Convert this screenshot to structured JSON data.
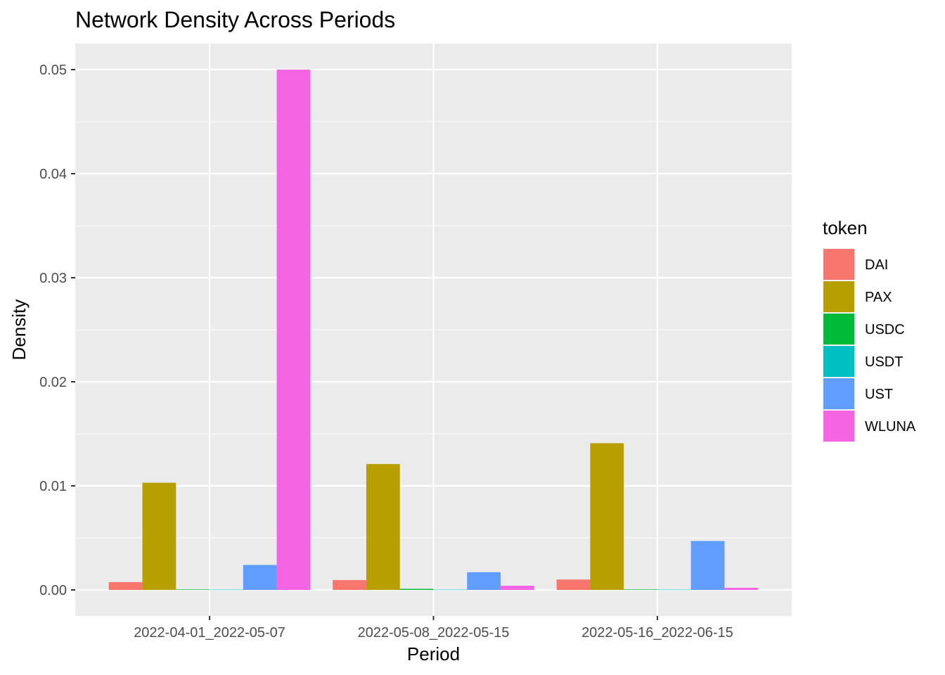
{
  "chart_data": {
    "type": "bar",
    "title": "Network Density Across Periods",
    "xlabel": "Period",
    "ylabel": "Density",
    "categories": [
      "2022-04-01_2022-05-07",
      "2022-05-08_2022-05-15",
      "2022-05-16_2022-06-15"
    ],
    "ylim": [
      -0.0025,
      0.0525
    ],
    "yticks": [
      0.0,
      0.01,
      0.02,
      0.03,
      0.04,
      0.05
    ],
    "ytick_labels": [
      "0.00",
      "0.01",
      "0.02",
      "0.03",
      "0.04",
      "0.05"
    ],
    "grid": true,
    "legend": {
      "title": "token",
      "position": "right"
    },
    "series": [
      {
        "name": "DAI",
        "color": "#F8766D",
        "values": [
          0.00075,
          0.00095,
          0.001
        ]
      },
      {
        "name": "PAX",
        "color": "#B79F00",
        "values": [
          0.0103,
          0.0121,
          0.0141
        ]
      },
      {
        "name": "USDC",
        "color": "#00BA38",
        "values": [
          5e-05,
          0.0001,
          5e-05
        ]
      },
      {
        "name": "USDT",
        "color": "#00BFC4",
        "values": [
          3e-05,
          3e-05,
          3e-05
        ]
      },
      {
        "name": "UST",
        "color": "#619CFF",
        "values": [
          0.0024,
          0.0017,
          0.0047
        ]
      },
      {
        "name": "WLUNA",
        "color": "#F564E3",
        "values": [
          0.05,
          0.0004,
          0.0002
        ]
      }
    ]
  }
}
